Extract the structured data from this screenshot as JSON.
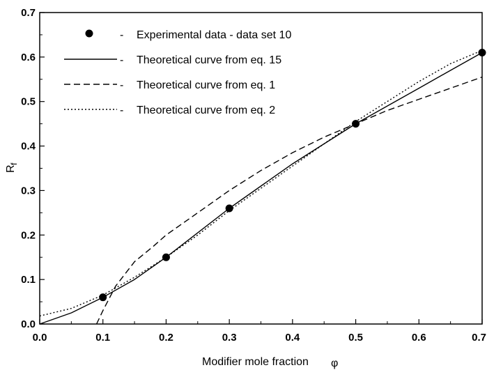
{
  "chart_data": {
    "type": "line",
    "xlabel": "Modifier mole fraction",
    "xlabel_symbol": "φ",
    "ylabel": "R",
    "ylabel_sub": "f",
    "xlim": [
      0.0,
      0.7
    ],
    "ylim": [
      0.0,
      0.7
    ],
    "xticks": [
      "0.0",
      "0.1",
      "0.2",
      "0.3",
      "0.4",
      "0.5",
      "0.6",
      "0.7"
    ],
    "yticks": [
      "0.0",
      "0.1",
      "0.2",
      "0.3",
      "0.4",
      "0.5",
      "0.6",
      "0.7"
    ],
    "grid": false,
    "legend_position": "top-left",
    "series": [
      {
        "name": "Experimental data - data set 10",
        "style": "markers",
        "x": [
          0.1,
          0.2,
          0.3,
          0.5,
          0.7
        ],
        "y": [
          0.06,
          0.15,
          0.26,
          0.45,
          0.61
        ]
      },
      {
        "name": "Theoretical curve from eq. 15",
        "style": "solid",
        "x": [
          0.0,
          0.05,
          0.1,
          0.15,
          0.2,
          0.25,
          0.3,
          0.35,
          0.4,
          0.45,
          0.5,
          0.55,
          0.6,
          0.65,
          0.7
        ],
        "y": [
          0.0,
          0.025,
          0.06,
          0.1,
          0.15,
          0.205,
          0.26,
          0.31,
          0.36,
          0.405,
          0.45,
          0.49,
          0.53,
          0.57,
          0.61
        ]
      },
      {
        "name": "Theoretical curve from eq. 1",
        "style": "dashed",
        "x": [
          0.09,
          0.1,
          0.12,
          0.15,
          0.18,
          0.2,
          0.25,
          0.3,
          0.35,
          0.4,
          0.45,
          0.5,
          0.55,
          0.6,
          0.65,
          0.7
        ],
        "y": [
          0.0,
          0.03,
          0.085,
          0.14,
          0.175,
          0.2,
          0.25,
          0.3,
          0.345,
          0.385,
          0.42,
          0.45,
          0.48,
          0.505,
          0.53,
          0.555
        ]
      },
      {
        "name": "Theoretical curve from eq. 2",
        "style": "dotted",
        "x": [
          0.0,
          0.05,
          0.1,
          0.15,
          0.2,
          0.25,
          0.3,
          0.35,
          0.4,
          0.45,
          0.5,
          0.55,
          0.6,
          0.65,
          0.7
        ],
        "y": [
          0.018,
          0.035,
          0.065,
          0.105,
          0.15,
          0.2,
          0.255,
          0.305,
          0.355,
          0.405,
          0.455,
          0.5,
          0.545,
          0.585,
          0.615
        ]
      }
    ],
    "legend_separator": "-"
  }
}
